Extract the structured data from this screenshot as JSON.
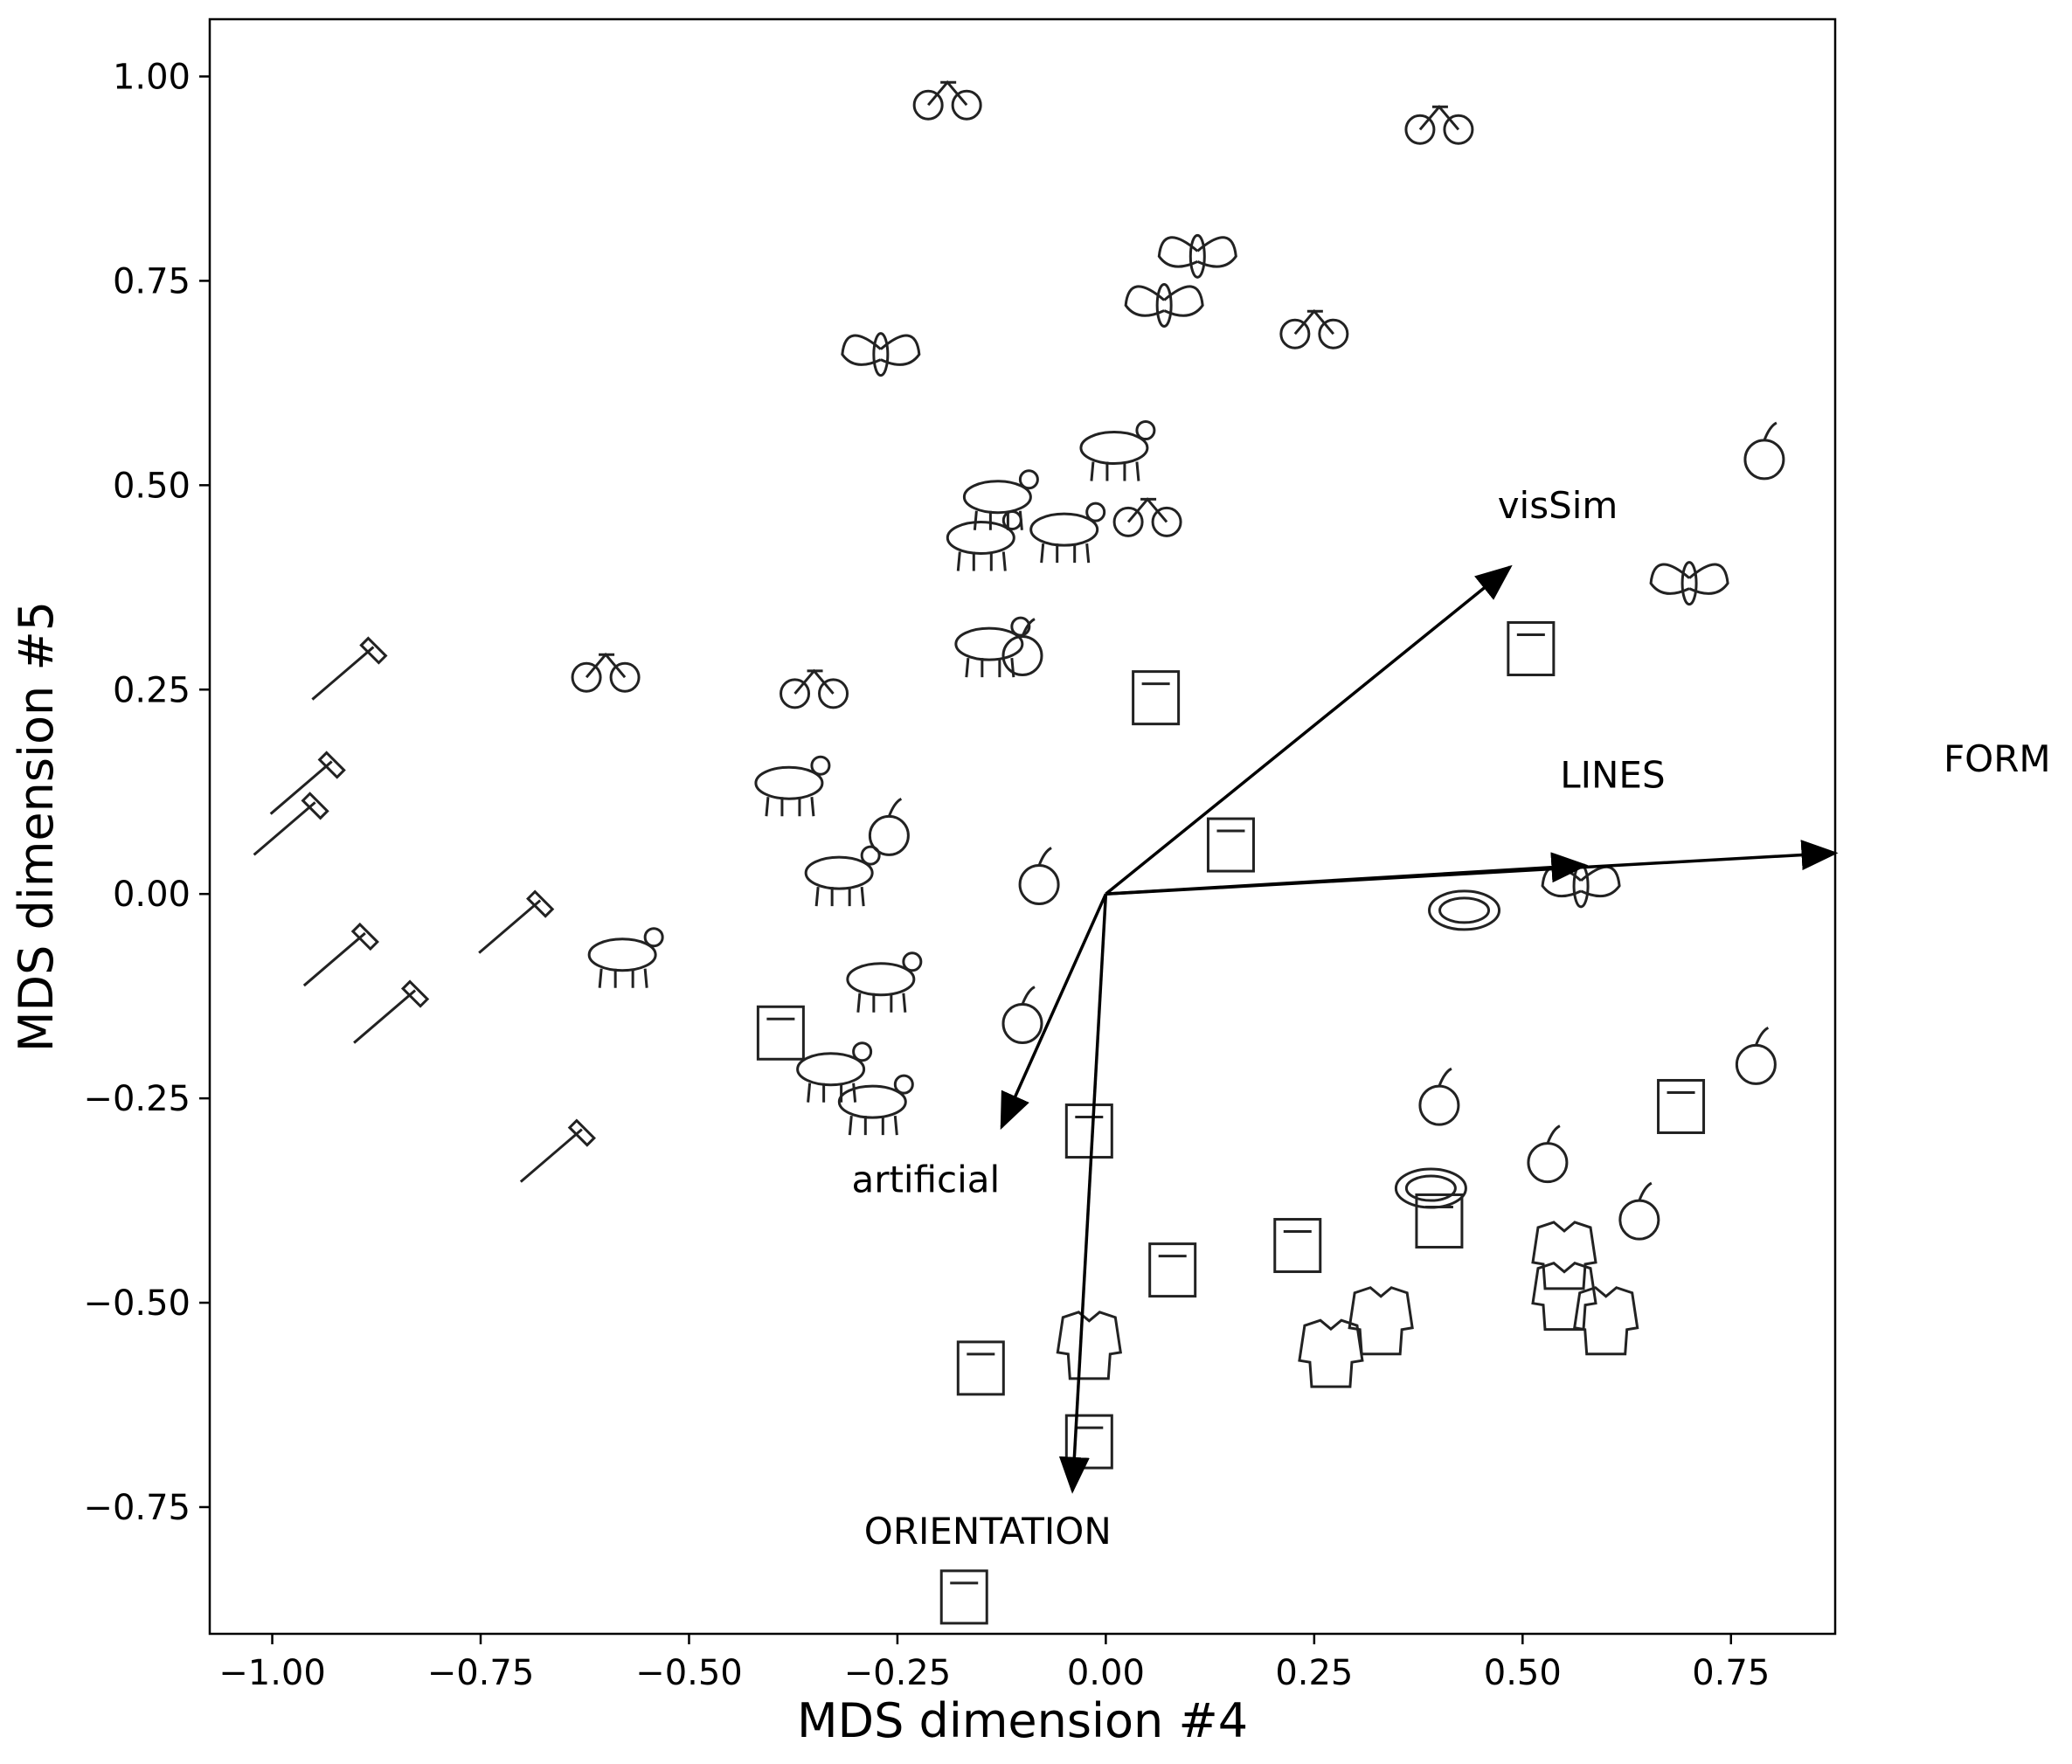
{
  "chart_data": {
    "type": "scatter",
    "xlabel": "MDS dimension #4",
    "ylabel": "MDS dimension #5",
    "xlim": [
      -1.075,
      0.875
    ],
    "ylim": [
      -0.905,
      1.07
    ],
    "xticks": [
      -1.0,
      -0.75,
      -0.5,
      -0.25,
      0.0,
      0.25,
      0.5,
      0.75
    ],
    "xtick_labels": [
      "−1.00",
      "−0.75",
      "−0.50",
      "−0.25",
      "0.00",
      "0.25",
      "0.50",
      "0.75"
    ],
    "yticks": [
      1.0,
      0.75,
      0.5,
      0.25,
      0.0,
      -0.25,
      -0.5,
      -0.75
    ],
    "ytick_labels": [
      "1.00",
      "0.75",
      "0.50",
      "0.25",
      "0.00",
      "−0.25",
      "−0.50",
      "−0.75"
    ],
    "vectors": [
      {
        "label": "visSim",
        "x": 0.485,
        "y": 0.4,
        "label_x": 0.47,
        "label_y": 0.46
      },
      {
        "label": "LINES",
        "x": 0.575,
        "y": 0.035,
        "label_x": 0.545,
        "label_y": 0.13
      },
      {
        "label": "FORM",
        "x": 0.875,
        "y": 0.05,
        "label_x": 1.005,
        "label_y": 0.15
      },
      {
        "label": "artificial",
        "x": -0.125,
        "y": -0.285,
        "label_x": -0.305,
        "label_y": -0.365
      },
      {
        "label": "ORIENTATION",
        "x": -0.04,
        "y": -0.73,
        "label_x": -0.29,
        "label_y": -0.795
      }
    ],
    "points": [
      {
        "name": "scooter-icon",
        "x": -0.19,
        "y": 0.98
      },
      {
        "name": "bicycle-icon",
        "x": 0.4,
        "y": 0.95
      },
      {
        "name": "fly-icon",
        "x": 0.11,
        "y": 0.78
      },
      {
        "name": "ant-icon",
        "x": 0.07,
        "y": 0.72
      },
      {
        "name": "tractor-icon",
        "x": 0.25,
        "y": 0.7
      },
      {
        "name": "dragonfly-icon",
        "x": -0.27,
        "y": 0.66
      },
      {
        "name": "cherries-icon",
        "x": 0.79,
        "y": 0.54
      },
      {
        "name": "goat-icon",
        "x": 0.01,
        "y": 0.55
      },
      {
        "name": "donkey-icon",
        "x": -0.13,
        "y": 0.49
      },
      {
        "name": "car-icon",
        "x": 0.05,
        "y": 0.47
      },
      {
        "name": "horse-icon",
        "x": -0.15,
        "y": 0.44
      },
      {
        "name": "deer-icon",
        "x": -0.05,
        "y": 0.45
      },
      {
        "name": "butterfly-icon",
        "x": 0.7,
        "y": 0.38
      },
      {
        "name": "cow-icon",
        "x": -0.14,
        "y": 0.31
      },
      {
        "name": "dandelion-icon",
        "x": -0.1,
        "y": 0.3
      },
      {
        "name": "pyramid-icon",
        "x": 0.51,
        "y": 0.3
      },
      {
        "name": "shovel-icon",
        "x": -0.91,
        "y": 0.27
      },
      {
        "name": "carrot-icon",
        "x": -0.6,
        "y": 0.28
      },
      {
        "name": "bus-icon",
        "x": -0.35,
        "y": 0.26
      },
      {
        "name": "church-icon",
        "x": 0.06,
        "y": 0.24
      },
      {
        "name": "stork-icon",
        "x": -0.38,
        "y": 0.14
      },
      {
        "name": "axe-icon",
        "x": -0.96,
        "y": 0.13
      },
      {
        "name": "hammer-icon",
        "x": -0.98,
        "y": 0.08
      },
      {
        "name": "tulip-icon",
        "x": -0.26,
        "y": 0.08
      },
      {
        "name": "windmill-icon",
        "x": 0.15,
        "y": 0.06
      },
      {
        "name": "rose-icon",
        "x": -0.08,
        "y": 0.02
      },
      {
        "name": "palm-tree-icon",
        "x": -0.32,
        "y": 0.03
      },
      {
        "name": "ladybug-icon",
        "x": 0.57,
        "y": 0.01
      },
      {
        "name": "plate-icon",
        "x": 0.43,
        "y": -0.02
      },
      {
        "name": "banana-icon",
        "x": -0.71,
        "y": -0.04
      },
      {
        "name": "parrot-icon",
        "x": -0.58,
        "y": -0.07
      },
      {
        "name": "eagle-icon",
        "x": -0.27,
        "y": -0.1
      },
      {
        "name": "saw-icon",
        "x": -0.92,
        "y": -0.08
      },
      {
        "name": "pliers-icon",
        "x": -0.86,
        "y": -0.15
      },
      {
        "name": "lighthouse-icon",
        "x": -0.39,
        "y": -0.17
      },
      {
        "name": "sunflower-icon",
        "x": -0.1,
        "y": -0.15
      },
      {
        "name": "apple-icon",
        "x": 0.78,
        "y": -0.2
      },
      {
        "name": "pigeon-icon",
        "x": -0.33,
        "y": -0.21
      },
      {
        "name": "owl-icon",
        "x": -0.28,
        "y": -0.25
      },
      {
        "name": "igloo-icon",
        "x": 0.69,
        "y": -0.26
      },
      {
        "name": "broccoli-icon",
        "x": 0.4,
        "y": -0.25
      },
      {
        "name": "toaster-icon",
        "x": -0.02,
        "y": -0.29
      },
      {
        "name": "raspberry-icon",
        "x": 0.53,
        "y": -0.32
      },
      {
        "name": "bowl-icon",
        "x": 0.39,
        "y": -0.36
      },
      {
        "name": "tv-icon",
        "x": 0.4,
        "y": -0.4
      },
      {
        "name": "onion-icon",
        "x": 0.64,
        "y": -0.39
      },
      {
        "name": "washing-machine-icon",
        "x": 0.23,
        "y": -0.43
      },
      {
        "name": "jacket-icon",
        "x": 0.55,
        "y": -0.44
      },
      {
        "name": "microwave-icon",
        "x": 0.08,
        "y": -0.46
      },
      {
        "name": "teapot-icon",
        "x": 0.6,
        "y": -0.52
      },
      {
        "name": "shirt-icon",
        "x": 0.55,
        "y": -0.49
      },
      {
        "name": "hoodie-icon",
        "x": 0.33,
        "y": -0.52
      },
      {
        "name": "uniform-icon",
        "x": 0.27,
        "y": -0.56
      },
      {
        "name": "coat-icon",
        "x": -0.02,
        "y": -0.55
      },
      {
        "name": "salt-shaker-icon",
        "x": -0.15,
        "y": -0.58
      },
      {
        "name": "asparagus-icon",
        "x": -0.66,
        "y": -0.32
      },
      {
        "name": "dishwasher-icon",
        "x": -0.02,
        "y": -0.67
      },
      {
        "name": "glass-icon",
        "x": -0.17,
        "y": -0.86
      }
    ]
  }
}
